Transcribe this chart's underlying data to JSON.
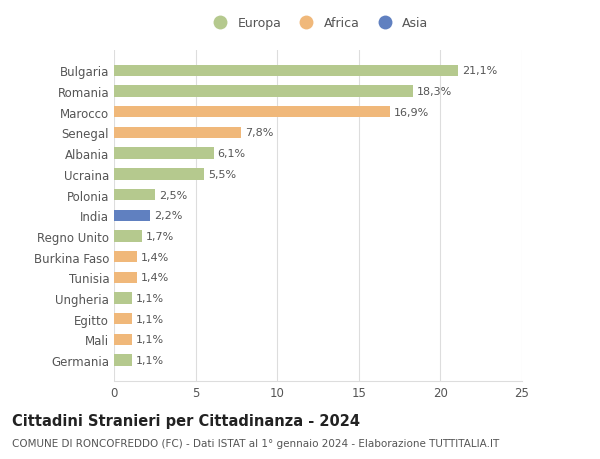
{
  "categories": [
    "Bulgaria",
    "Romania",
    "Marocco",
    "Senegal",
    "Albania",
    "Ucraina",
    "Polonia",
    "India",
    "Regno Unito",
    "Burkina Faso",
    "Tunisia",
    "Ungheria",
    "Egitto",
    "Mali",
    "Germania"
  ],
  "values": [
    21.1,
    18.3,
    16.9,
    7.8,
    6.1,
    5.5,
    2.5,
    2.2,
    1.7,
    1.4,
    1.4,
    1.1,
    1.1,
    1.1,
    1.1
  ],
  "labels": [
    "21,1%",
    "18,3%",
    "16,9%",
    "7,8%",
    "6,1%",
    "5,5%",
    "2,5%",
    "2,2%",
    "1,7%",
    "1,4%",
    "1,4%",
    "1,1%",
    "1,1%",
    "1,1%",
    "1,1%"
  ],
  "continents": [
    "Europa",
    "Europa",
    "Africa",
    "Africa",
    "Europa",
    "Europa",
    "Europa",
    "Asia",
    "Europa",
    "Africa",
    "Africa",
    "Europa",
    "Africa",
    "Africa",
    "Europa"
  ],
  "colors": {
    "Europa": "#b5c98e",
    "Africa": "#f0b87a",
    "Asia": "#6080c0"
  },
  "title": "Cittadini Stranieri per Cittadinanza - 2024",
  "subtitle": "COMUNE DI RONCOFREDDO (FC) - Dati ISTAT al 1° gennaio 2024 - Elaborazione TUTTITALIA.IT",
  "xlim": [
    0,
    25
  ],
  "xticks": [
    0,
    5,
    10,
    15,
    20,
    25
  ],
  "background_color": "#ffffff",
  "grid_color": "#dddddd",
  "bar_height": 0.55,
  "label_fontsize": 8,
  "ytick_fontsize": 8.5,
  "xtick_fontsize": 8.5,
  "title_fontsize": 10.5,
  "subtitle_fontsize": 7.5
}
